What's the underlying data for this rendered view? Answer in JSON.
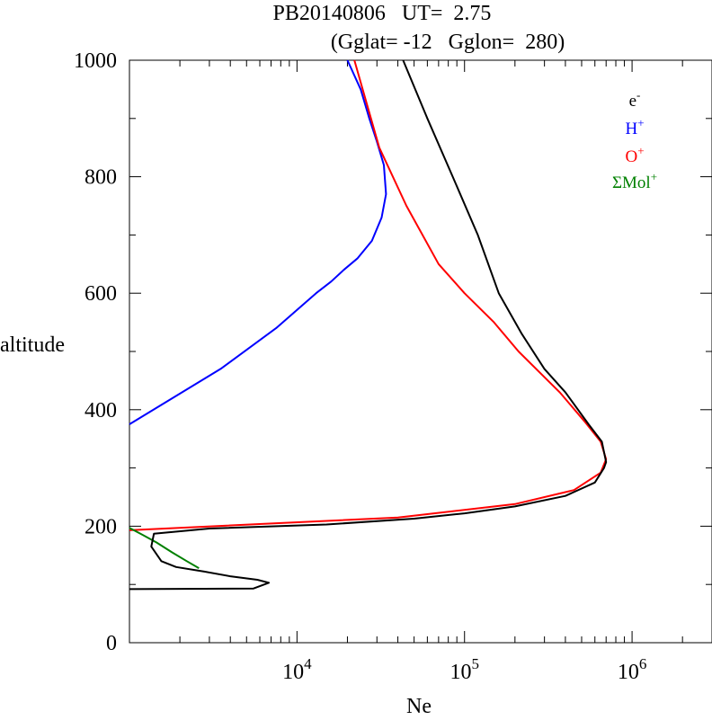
{
  "header": {
    "title_line1": "PB20140806   UT=  2.75",
    "title_line2": "(Gglat= -12   Gglon=  280)"
  },
  "chart_data": {
    "type": "line",
    "xlabel": "Ne",
    "ylabel": "altitude",
    "xscale": "log",
    "xlim": [
      1000,
      3000000
    ],
    "ylim": [
      0,
      1000
    ],
    "x_tick_labels": [
      {
        "base": "10",
        "exp": "4",
        "value": 10000
      },
      {
        "base": "10",
        "exp": "5",
        "value": 100000
      },
      {
        "base": "10",
        "exp": "6",
        "value": 1000000
      }
    ],
    "y_tick_labels": [
      {
        "label": "0",
        "value": 0
      },
      {
        "label": "200",
        "value": 200
      },
      {
        "label": "400",
        "value": 400
      },
      {
        "label": "600",
        "value": 600
      },
      {
        "label": "800",
        "value": 800
      },
      {
        "label": "1000",
        "value": 1000
      }
    ],
    "legend_position": "top-right",
    "legend": [
      {
        "base": "e",
        "sup": "-",
        "color": "#000000"
      },
      {
        "base": "H",
        "sup": "+",
        "color": "#0000ff"
      },
      {
        "base": "O",
        "sup": "+",
        "color": "#ff0000"
      },
      {
        "base": "ΣMol",
        "sup": "+",
        "color": "#008000"
      }
    ],
    "series": [
      {
        "color": "#0000ff",
        "points": [
          [
            1000,
            375
          ],
          [
            3500,
            470
          ],
          [
            7500,
            540
          ],
          [
            13000,
            600
          ],
          [
            16000,
            620
          ],
          [
            19000,
            640
          ],
          [
            23000,
            660
          ],
          [
            28000,
            690
          ],
          [
            32000,
            730
          ],
          [
            34000,
            770
          ],
          [
            33000,
            820
          ],
          [
            30000,
            860
          ],
          [
            27000,
            900
          ],
          [
            24000,
            950
          ],
          [
            20000,
            1000
          ]
        ]
      },
      {
        "color": "#ff0000",
        "points": [
          [
            1000,
            193
          ],
          [
            40000,
            215
          ],
          [
            200000,
            238
          ],
          [
            450000,
            262
          ],
          [
            650000,
            292
          ],
          [
            700000,
            315
          ],
          [
            650000,
            345
          ],
          [
            520000,
            380
          ],
          [
            370000,
            430
          ],
          [
            210000,
            500
          ],
          [
            150000,
            550
          ],
          [
            100000,
            600
          ],
          [
            70000,
            650
          ],
          [
            45000,
            750
          ],
          [
            31000,
            850
          ],
          [
            22000,
            1000
          ]
        ]
      },
      {
        "color": "#008000",
        "points": [
          [
            1000,
            197
          ],
          [
            1200,
            185
          ],
          [
            1450,
            172
          ],
          [
            1800,
            155
          ],
          [
            2200,
            140
          ],
          [
            2600,
            128
          ]
        ]
      },
      {
        "color": "#000000",
        "points": [
          [
            1000,
            92
          ],
          [
            5500,
            93
          ],
          [
            6800,
            103
          ],
          [
            5800,
            108
          ],
          [
            4000,
            114
          ],
          [
            2800,
            122
          ],
          [
            1900,
            130
          ],
          [
            1550,
            140
          ],
          [
            1350,
            165
          ],
          [
            1400,
            187
          ],
          [
            3000,
            196
          ],
          [
            15000,
            203
          ],
          [
            50000,
            213
          ],
          [
            100000,
            222
          ],
          [
            200000,
            234
          ],
          [
            400000,
            252
          ],
          [
            600000,
            275
          ],
          [
            680000,
            300
          ],
          [
            700000,
            310
          ],
          [
            660000,
            345
          ],
          [
            550000,
            375
          ],
          [
            400000,
            430
          ],
          [
            300000,
            470
          ],
          [
            220000,
            530
          ],
          [
            160000,
            600
          ],
          [
            120000,
            700
          ],
          [
            85000,
            800
          ],
          [
            60000,
            900
          ],
          [
            43000,
            1000
          ]
        ]
      }
    ]
  }
}
